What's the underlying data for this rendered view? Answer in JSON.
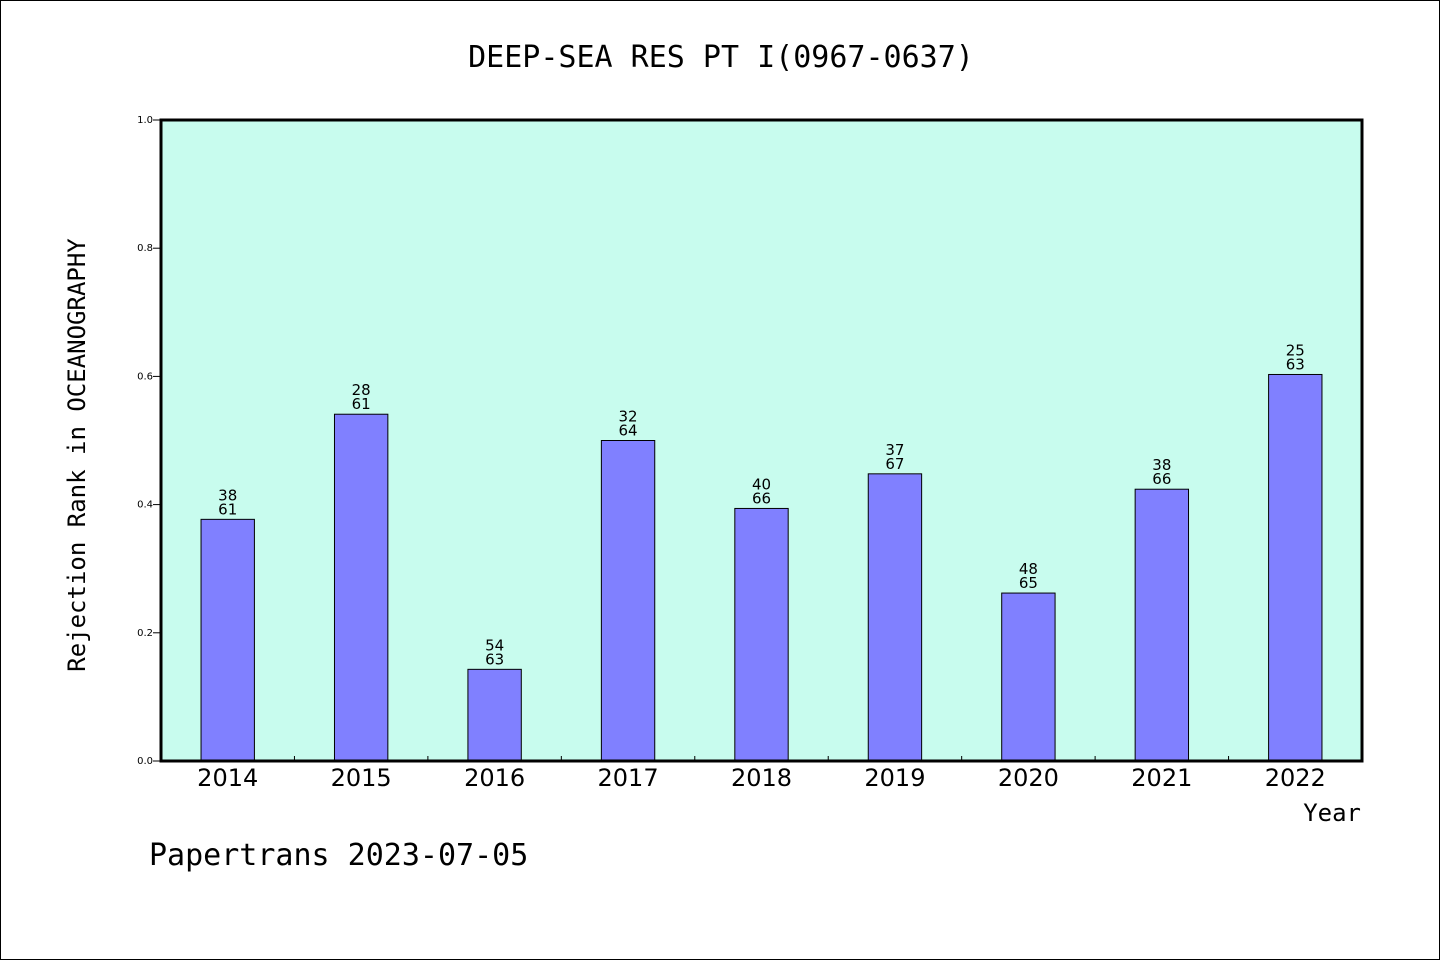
{
  "chart_data": {
    "type": "bar",
    "title": "DEEP-SEA RES PT I(0967-0637)",
    "xlabel": "Year",
    "ylabel": "Rejection Rank in OCEANOGRAPHY",
    "categories": [
      "2014",
      "2015",
      "2016",
      "2017",
      "2018",
      "2019",
      "2020",
      "2021",
      "2022"
    ],
    "values": [
      0.377,
      0.541,
      0.143,
      0.5,
      0.394,
      0.448,
      0.262,
      0.424,
      0.603
    ],
    "data_labels": [
      [
        "38",
        "61"
      ],
      [
        "28",
        "61"
      ],
      [
        "54",
        "63"
      ],
      [
        "32",
        "64"
      ],
      [
        "40",
        "66"
      ],
      [
        "37",
        "67"
      ],
      [
        "48",
        "65"
      ],
      [
        "38",
        "66"
      ],
      [
        "25",
        "63"
      ]
    ],
    "ylim": [
      0,
      1.0
    ],
    "yticks": [
      "0.0",
      "0.2",
      "0.4",
      "0.6",
      "0.8",
      "1.0"
    ],
    "grid": false,
    "colors": {
      "plot_background": "#c8fcee",
      "bar_fill": "#8080ff",
      "bar_stroke": "#000000",
      "axis": "#000000"
    }
  },
  "footer": {
    "text": "Papertrans 2023-07-05"
  }
}
